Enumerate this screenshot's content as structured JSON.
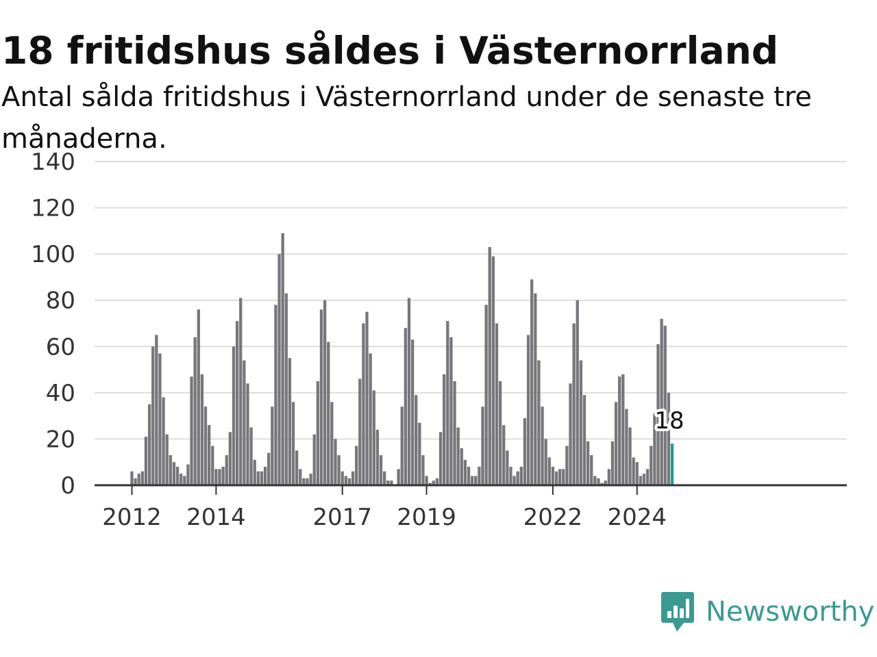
{
  "title": "18 fritidshus såldes i Västernorrland",
  "subtitle": "Antal sålda fritidshus i Västernorrland under de senaste tre månaderna.",
  "brand": {
    "name": "Newsworthy",
    "color": "#3a9a92",
    "icon": "newsworthy-logo-icon"
  },
  "colors": {
    "bar": "#77767b",
    "highlight": "#1a9a92",
    "grid": "#dddddd",
    "axis": "#333333"
  },
  "chart_data": {
    "type": "bar",
    "title": "18 fritidshus såldes i Västernorrland",
    "subtitle": "Antal sålda fritidshus i Västernorrland under de senaste tre månaderna.",
    "xlabel": "",
    "ylabel": "",
    "ylim": [
      0,
      140
    ],
    "y_ticks": [
      0,
      20,
      40,
      60,
      80,
      100,
      120,
      140
    ],
    "x_ticks": [
      {
        "label": "2012",
        "index": 0
      },
      {
        "label": "2014",
        "index": 24
      },
      {
        "label": "2017",
        "index": 60
      },
      {
        "label": "2019",
        "index": 84
      },
      {
        "label": "2022",
        "index": 120
      },
      {
        "label": "2024",
        "index": 144
      }
    ],
    "grid": true,
    "series": [
      {
        "values": [
          6,
          3,
          5,
          6,
          21,
          35,
          60,
          65,
          57,
          38,
          22,
          13,
          10,
          8,
          5,
          4,
          9,
          47,
          64,
          76,
          48,
          34,
          26,
          17,
          7,
          7,
          8,
          13,
          23,
          60,
          71,
          81,
          54,
          44,
          25,
          11,
          6,
          6,
          8,
          14,
          34,
          78,
          100,
          109,
          83,
          55,
          36,
          15,
          7,
          3,
          3,
          5,
          22,
          45,
          76,
          80,
          62,
          36,
          20,
          13,
          6,
          4,
          3,
          6,
          17,
          46,
          70,
          75,
          57,
          41,
          24,
          13,
          6,
          2,
          2,
          0,
          7,
          34,
          68,
          81,
          63,
          39,
          27,
          13,
          4,
          1,
          2,
          3,
          23,
          48,
          71,
          64,
          45,
          25,
          16,
          11,
          8,
          4,
          4,
          8,
          34,
          78,
          103,
          99,
          70,
          45,
          26,
          15,
          8,
          4,
          6,
          8,
          29,
          65,
          89,
          83,
          54,
          34,
          20,
          12,
          8,
          6,
          7,
          7,
          17,
          44,
          70,
          80,
          54,
          39,
          19,
          13,
          4,
          3,
          1,
          2,
          7,
          19,
          36,
          47,
          48,
          33,
          25,
          12,
          10,
          4,
          5,
          7,
          17,
          31,
          61,
          72,
          69,
          40,
          18
        ]
      }
    ],
    "highlight": {
      "index": 154,
      "value": 18,
      "label": "18"
    }
  }
}
